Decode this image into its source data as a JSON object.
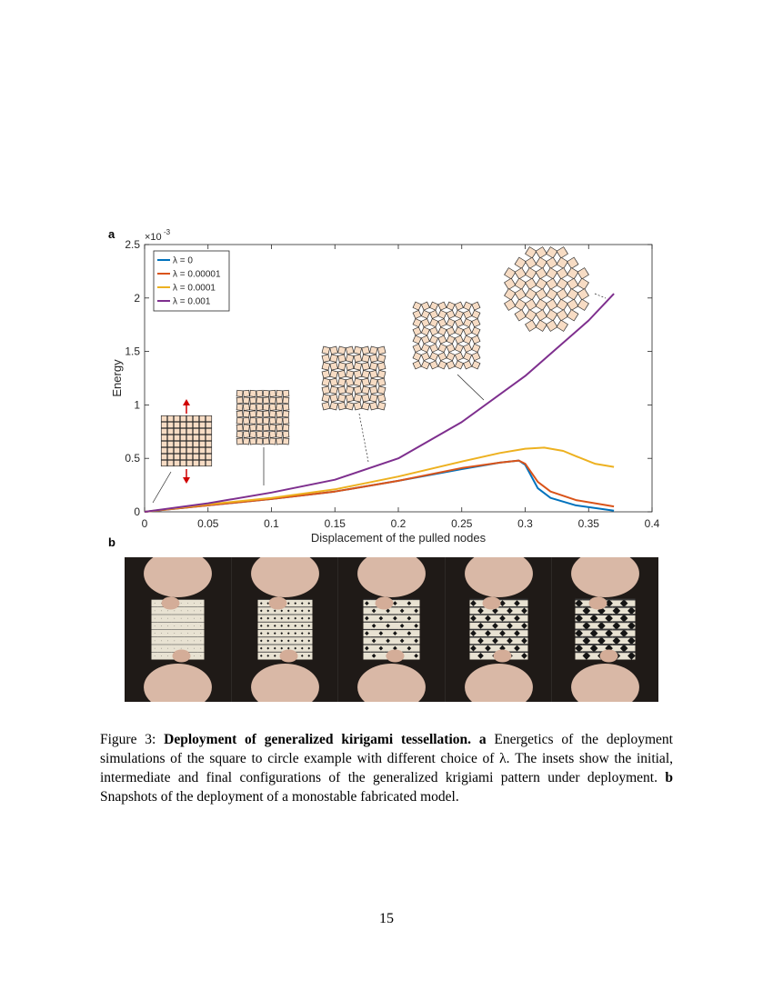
{
  "panel_a_label": "a",
  "panel_b_label": "b",
  "chart_data": {
    "type": "line",
    "xlabel": "Displacement of the pulled nodes",
    "ylabel": "Energy",
    "y_exponent": "×10",
    "y_exponent_power": "-3",
    "xlim": [
      0,
      0.4
    ],
    "ylim": [
      0,
      2.5
    ],
    "x_ticks": [
      "0",
      "0.05",
      "0.1",
      "0.15",
      "0.2",
      "0.25",
      "0.3",
      "0.35",
      "0.4"
    ],
    "y_ticks": [
      "0",
      "0.5",
      "1",
      "1.5",
      "2",
      "2.5"
    ],
    "grid": false,
    "legend_position": "top-left",
    "series": [
      {
        "name": "λ = 0",
        "color": "#0072BD",
        "x": [
          0,
          0.05,
          0.1,
          0.15,
          0.2,
          0.25,
          0.28,
          0.295,
          0.3,
          0.31,
          0.32,
          0.34,
          0.37
        ],
        "y": [
          0,
          0.06,
          0.12,
          0.19,
          0.29,
          0.4,
          0.46,
          0.48,
          0.44,
          0.22,
          0.13,
          0.06,
          0.01
        ]
      },
      {
        "name": "λ = 0.00001",
        "color": "#D95319",
        "x": [
          0,
          0.05,
          0.1,
          0.15,
          0.2,
          0.25,
          0.28,
          0.295,
          0.3,
          0.31,
          0.32,
          0.34,
          0.37
        ],
        "y": [
          0,
          0.06,
          0.12,
          0.19,
          0.29,
          0.41,
          0.46,
          0.48,
          0.45,
          0.28,
          0.19,
          0.11,
          0.05
        ]
      },
      {
        "name": "λ = 0.0001",
        "color": "#EDB120",
        "x": [
          0,
          0.05,
          0.1,
          0.15,
          0.2,
          0.25,
          0.28,
          0.3,
          0.315,
          0.33,
          0.34,
          0.355,
          0.37
        ],
        "y": [
          0,
          0.07,
          0.13,
          0.21,
          0.33,
          0.47,
          0.55,
          0.59,
          0.6,
          0.57,
          0.52,
          0.45,
          0.42
        ]
      },
      {
        "name": "λ = 0.001",
        "color": "#7E2F8E",
        "x": [
          0,
          0.05,
          0.1,
          0.15,
          0.2,
          0.25,
          0.3,
          0.35,
          0.37
        ],
        "y": [
          0,
          0.08,
          0.18,
          0.3,
          0.5,
          0.84,
          1.27,
          1.79,
          2.04
        ]
      }
    ]
  },
  "caption": {
    "prefix": "Figure 3: ",
    "title": "Deployment of generalized kirigami tessellation.",
    "a_label": "a",
    "a_text": " Energetics of the deployment simulations of the square to circle example with different choice of λ. The insets show the initial, intermediate and final configurations of the generalized krigiami pattern under deployment.",
    "b_label": "b",
    "b_text": " Snapshots of the deployment of a monostable fabricated model."
  },
  "page_number": "15"
}
